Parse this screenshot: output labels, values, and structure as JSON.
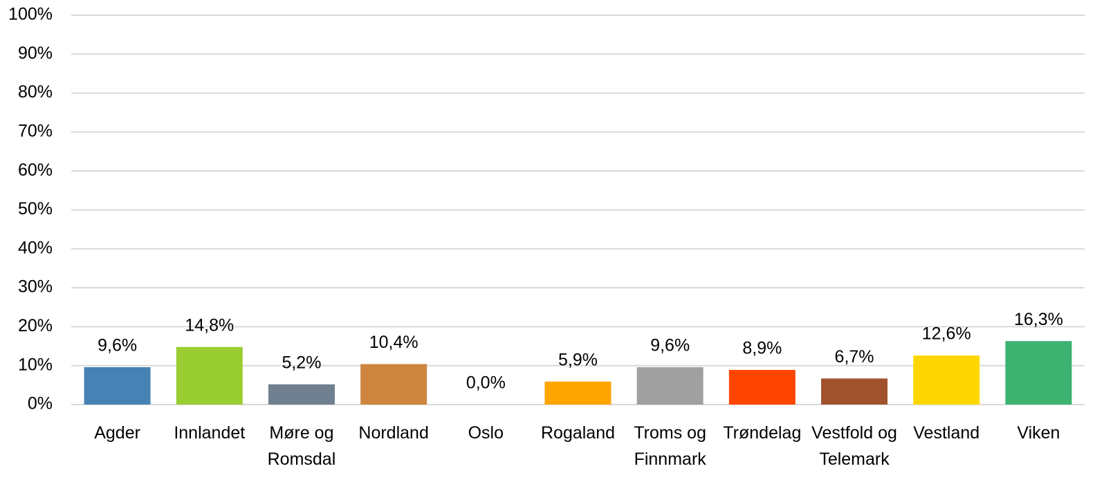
{
  "chart_data": {
    "type": "bar",
    "categories": [
      "Agder",
      "Innlandet",
      "Møre og Romsdal",
      "Nordland",
      "Oslo",
      "Rogaland",
      "Troms og Finnmark",
      "Trøndelag",
      "Vestfold og Telemark",
      "Vestland",
      "Viken"
    ],
    "values": [
      9.6,
      14.8,
      5.2,
      10.4,
      0.0,
      5.9,
      9.6,
      8.9,
      6.7,
      12.6,
      16.3
    ],
    "value_labels": [
      "9,6%",
      "14,8%",
      "5,2%",
      "10,4%",
      "0,0%",
      "5,9%",
      "9,6%",
      "8,9%",
      "6,7%",
      "12,6%",
      "16,3%"
    ],
    "colors": [
      "#4682b4",
      "#9acd32",
      "#708090",
      "#cd853f",
      "#ff69b4",
      "#ffa500",
      "#a0a0a0",
      "#ff4500",
      "#a0522d",
      "#ffd700",
      "#3cb371"
    ],
    "ylim": [
      0,
      100
    ],
    "yticks": [
      {
        "value": 0,
        "label": "0%"
      },
      {
        "value": 10,
        "label": "10%"
      },
      {
        "value": 20,
        "label": "20%"
      },
      {
        "value": 30,
        "label": "30%"
      },
      {
        "value": 40,
        "label": "40%"
      },
      {
        "value": 50,
        "label": "50%"
      },
      {
        "value": 60,
        "label": "60%"
      },
      {
        "value": 70,
        "label": "70%"
      },
      {
        "value": 80,
        "label": "80%"
      },
      {
        "value": 90,
        "label": "90%"
      },
      {
        "value": 100,
        "label": "100%"
      }
    ],
    "grid": true
  }
}
